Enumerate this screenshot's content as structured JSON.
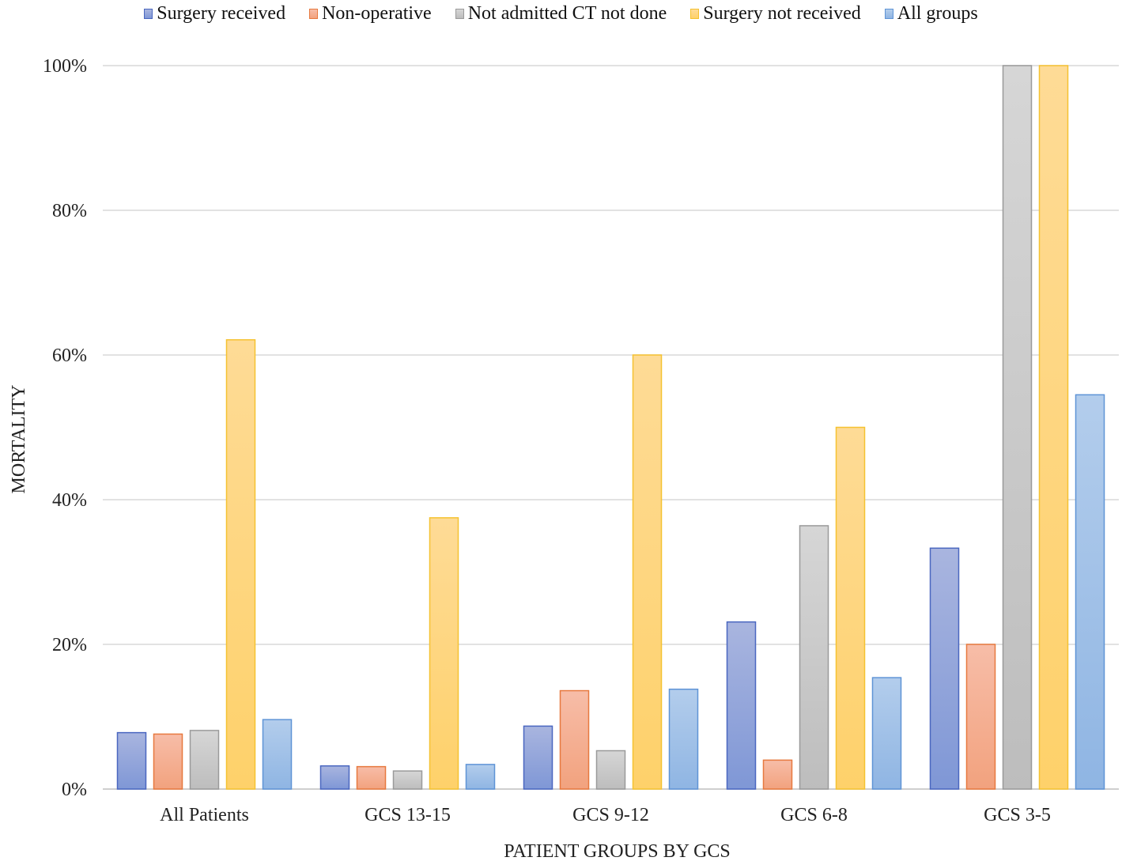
{
  "chart_data": {
    "type": "bar",
    "title": "",
    "xlabel": "PATIENT GROUPS BY GCS",
    "ylabel": "MORTALITY",
    "ylim": [
      0,
      100
    ],
    "yticks": [
      0,
      20,
      40,
      60,
      80,
      100
    ],
    "ytick_labels": [
      "0%",
      "20%",
      "40%",
      "60%",
      "80%",
      "100%"
    ],
    "grid": true,
    "legend_position": "top",
    "categories": [
      "All Patients",
      "GCS 13-15",
      "GCS 9-12",
      "GCS 6-8",
      "GCS 3-5"
    ],
    "series": [
      {
        "name": "Surgery received",
        "values": [
          7.8,
          3.2,
          8.7,
          23.1,
          33.3
        ],
        "color_top": "#a9b5df",
        "color_bottom": "#7f97d6",
        "stroke": "#4a67c0"
      },
      {
        "name": "Non-operative",
        "values": [
          7.6,
          3.1,
          13.6,
          4.0,
          20.0
        ],
        "color_top": "#f7bda8",
        "color_bottom": "#f2a27e",
        "stroke": "#e7793f"
      },
      {
        "name": "Not admitted CT not done",
        "values": [
          8.1,
          2.5,
          5.3,
          36.4,
          100.0
        ],
        "color_top": "#d6d6d6",
        "color_bottom": "#bdbdbd",
        "stroke": "#9a9a9a"
      },
      {
        "name": "Surgery not received",
        "values": [
          62.1,
          37.5,
          60.0,
          50.0,
          100.0
        ],
        "color_top": "#fedb96",
        "color_bottom": "#fed16a",
        "stroke": "#f5c231"
      },
      {
        "name": "All groups",
        "values": [
          9.6,
          3.4,
          13.8,
          15.4,
          54.5
        ],
        "color_top": "#b3cdec",
        "color_bottom": "#8fb5e3",
        "stroke": "#5f94d6"
      }
    ]
  }
}
